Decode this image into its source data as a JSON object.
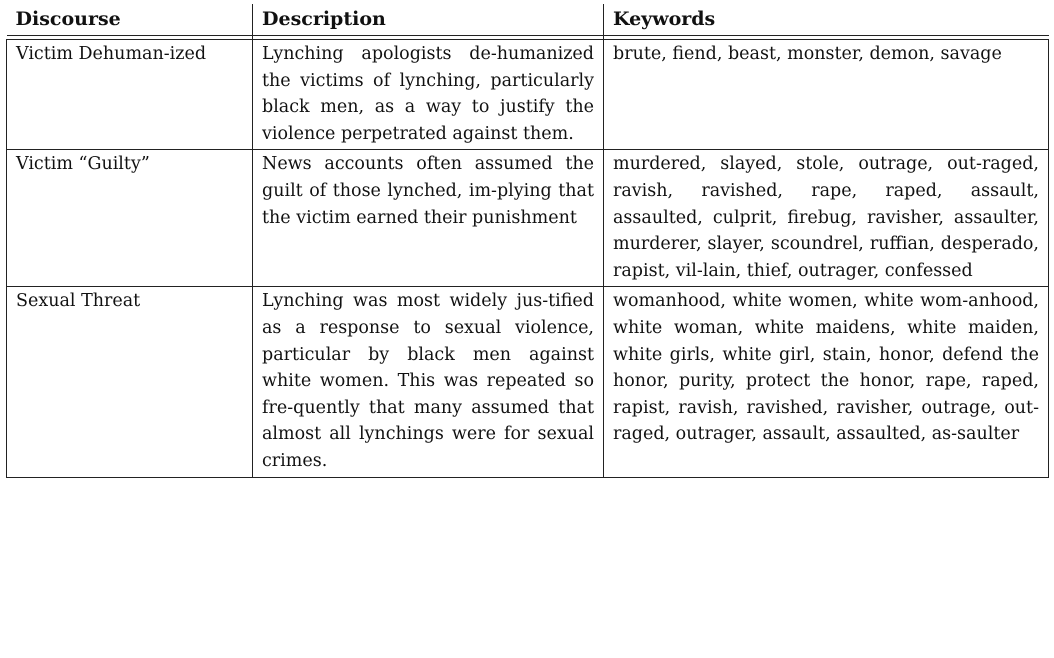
{
  "table": {
    "headers": [
      "Discourse",
      "Description",
      "Keywords"
    ],
    "rows": [
      {
        "discourse": "Victim Dehuman-ized",
        "description": "Lynching apologists de-humanized the victims of lynching, particularly black men, as a way to justify the violence perpetrated against them.",
        "keywords": "brute, fiend, beast, monster, demon, savage"
      },
      {
        "discourse": "Victim “Guilty”",
        "description": "News accounts often assumed the guilt of those lynched, im-plying that the victim earned their punishment",
        "keywords": "murdered, slayed, stole, outrage, out-raged, ravish, ravished, rape, raped, assault, assaulted, culprit, firebug, ravisher, assaulter, murderer, slayer, scoundrel, ruffian, desperado, rapist, vil-lain, thief, outrager, confessed"
      },
      {
        "discourse": "Sexual Threat",
        "description": "Lynching was most widely jus-tified as a response to sexual violence, particular by black men against white women. This was repeated so fre-quently that many assumed that almost all lynchings were for sexual crimes.",
        "keywords": "womanhood, white women, white wom-anhood, white woman, white maidens, white maiden, white girls, white girl, stain, honor, defend the honor, purity, protect the honor, rape, raped, rapist, ravish, ravished, ravisher, outrage, out-raged, outrager, assault, assaulted, as-saulter"
      }
    ]
  }
}
